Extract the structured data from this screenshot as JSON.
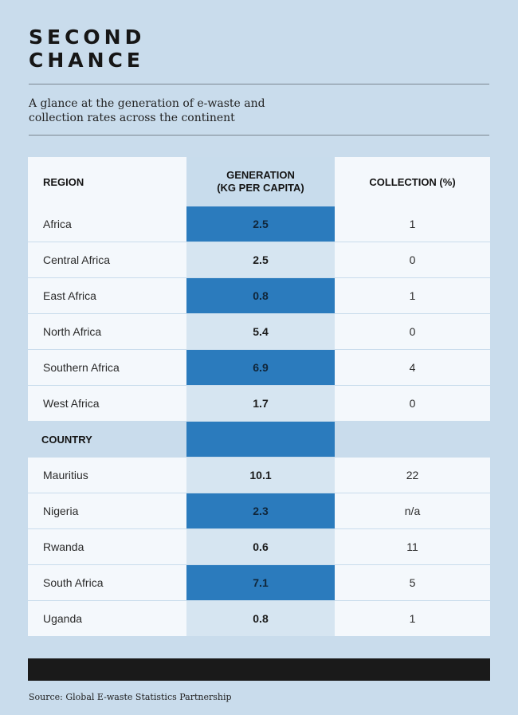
{
  "header": {
    "title_line1": "SECOND",
    "title_line2": "CHANCE",
    "subtitle_line1": "A glance at the generation of e-waste and",
    "subtitle_line2": "collection rates across the continent"
  },
  "table": {
    "columns": {
      "region": "REGION",
      "generation_line1": "GENERATION",
      "generation_line2": "(KG PER CAPITA)",
      "collection": "COLLECTION (%)"
    },
    "regions": [
      {
        "name": "Africa",
        "generation": "2.5",
        "collection": "1",
        "highlight": true
      },
      {
        "name": "Central Africa",
        "generation": "2.5",
        "collection": "0",
        "highlight": false
      },
      {
        "name": "East Africa",
        "generation": "0.8",
        "collection": "1",
        "highlight": true
      },
      {
        "name": "North Africa",
        "generation": "5.4",
        "collection": "0",
        "highlight": false
      },
      {
        "name": "Southern Africa",
        "generation": "6.9",
        "collection": "4",
        "highlight": true
      },
      {
        "name": "West Africa",
        "generation": "1.7",
        "collection": "0",
        "highlight": false
      }
    ],
    "country_section_label": "COUNTRY",
    "countries": [
      {
        "name": "Mauritius",
        "generation": "10.1",
        "collection": "22",
        "highlight": false
      },
      {
        "name": "Nigeria",
        "generation": "2.3",
        "collection": "n/a",
        "highlight": true
      },
      {
        "name": "Rwanda",
        "generation": "0.6",
        "collection": "11",
        "highlight": false
      },
      {
        "name": "South Africa",
        "generation": "7.1",
        "collection": "5",
        "highlight": true
      },
      {
        "name": "Uganda",
        "generation": "0.8",
        "collection": "1",
        "highlight": false
      }
    ]
  },
  "footer": {
    "source": "Source: Global E-waste Statistics Partnership"
  }
}
